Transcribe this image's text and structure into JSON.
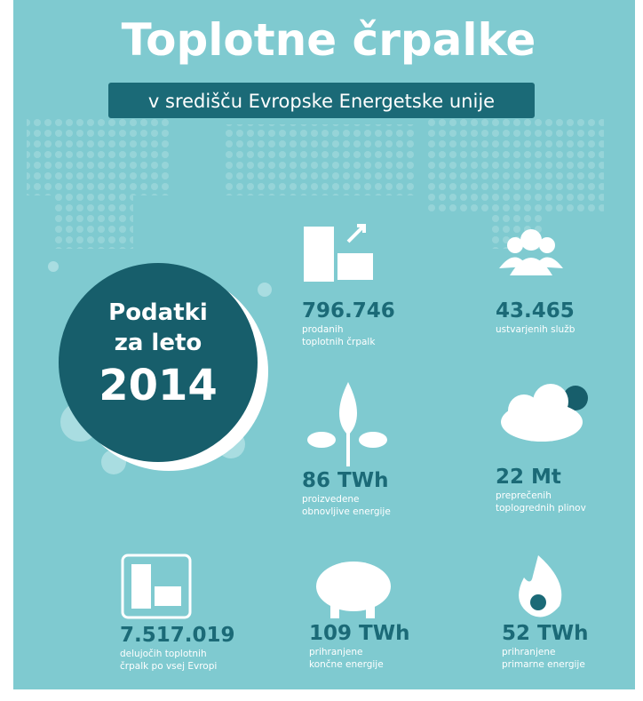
{
  "header": {
    "title": "Toplotne črpalke",
    "subtitle": "v središču Evropske Energetske unije"
  },
  "badge": {
    "lines": [
      "Podatki",
      "za leto"
    ],
    "year": "2014"
  },
  "stats": [
    {
      "value": "796.746",
      "description": [
        "prodanih",
        "toplotnih črpalk"
      ]
    },
    {
      "value": "43.465",
      "description": [
        "ustvarjenih služb"
      ]
    },
    {
      "value": "86 TWh",
      "description": [
        "proizvedene",
        "obnovljive energije"
      ]
    },
    {
      "value": "22 Mt",
      "description": [
        "preprečenih",
        "toplogrednih plinov"
      ]
    },
    {
      "value": "7.517.019",
      "description": [
        "delujočih  toplotnih",
        "črpalk po vsej Evropi"
      ]
    },
    {
      "value": "109 TWh",
      "description": [
        "prihranjene",
        "končne energije"
      ]
    },
    {
      "value": "52 TWh",
      "description": [
        "prihranjene",
        "primarne energije"
      ]
    }
  ]
}
